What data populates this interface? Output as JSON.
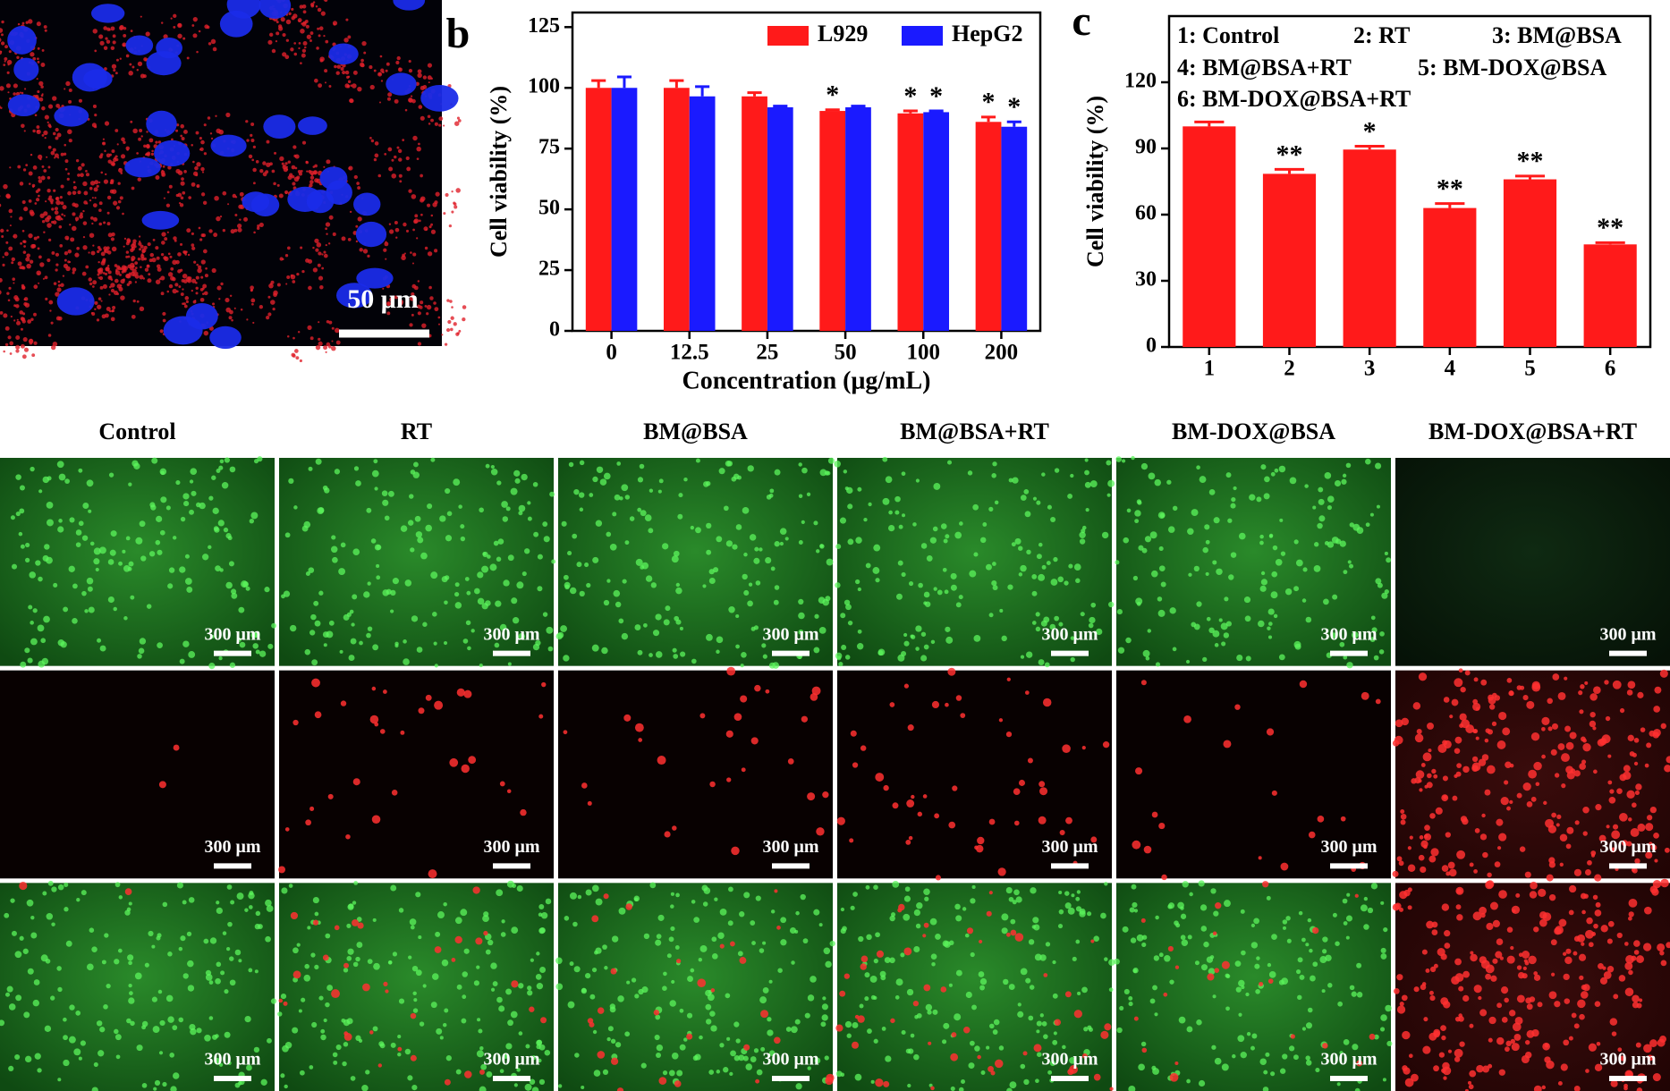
{
  "panel_a": {
    "scale_label": "50 μm"
  },
  "chart_data": [
    {
      "type": "bar",
      "panel_label": "b",
      "categories": [
        "0",
        "12.5",
        "25",
        "50",
        "100",
        "200"
      ],
      "series": [
        {
          "name": "L929",
          "color": "#ff1a1a",
          "values": [
            100,
            100,
            96.5,
            90.5,
            89.5,
            86
          ],
          "errors": [
            3,
            3,
            1.5,
            0.5,
            1,
            2
          ],
          "significance": [
            null,
            null,
            null,
            "*",
            "*",
            "*"
          ]
        },
        {
          "name": "HepG2",
          "color": "#1a1aff",
          "values": [
            100,
            96.5,
            92,
            92,
            90,
            84
          ],
          "errors": [
            4.5,
            4,
            0.5,
            0.5,
            0.5,
            2
          ],
          "significance": [
            null,
            null,
            null,
            null,
            "*",
            "*"
          ]
        }
      ],
      "xlabel": "Concentration (μg/mL)",
      "ylabel": "Cell viability (%)",
      "ylim": [
        0,
        131
      ],
      "yticks": [
        0,
        25,
        50,
        75,
        100,
        125
      ],
      "legend": "top-right"
    },
    {
      "type": "bar",
      "panel_label": "c",
      "categories": [
        "1",
        "2",
        "3",
        "4",
        "5",
        "6"
      ],
      "series": [
        {
          "color": "#ff1a1a",
          "values": [
            100,
            78.5,
            89.5,
            63,
            76,
            46.5
          ],
          "errors": [
            2,
            2,
            1.5,
            2,
            1.5,
            0.8
          ],
          "significance": [
            null,
            "**",
            "*",
            "**",
            "**",
            "**"
          ]
        }
      ],
      "legend_entries": [
        "1: Control",
        "2: RT",
        "3: BM@BSA",
        "4: BM@BSA+RT",
        "5: BM-DOX@BSA",
        "6: BM-DOX@BSA+RT"
      ],
      "ylabel": "Cell viability (%)",
      "ylim": [
        0,
        150
      ],
      "yticks": [
        0,
        30,
        60,
        90,
        120
      ]
    }
  ],
  "image_grid": {
    "columns": [
      "Control",
      "RT",
      "BM@BSA",
      "BM@BSA+RT",
      "BM-DOX@BSA",
      "BM-DOX@BSA+RT"
    ],
    "scale_label": "300 μm"
  }
}
